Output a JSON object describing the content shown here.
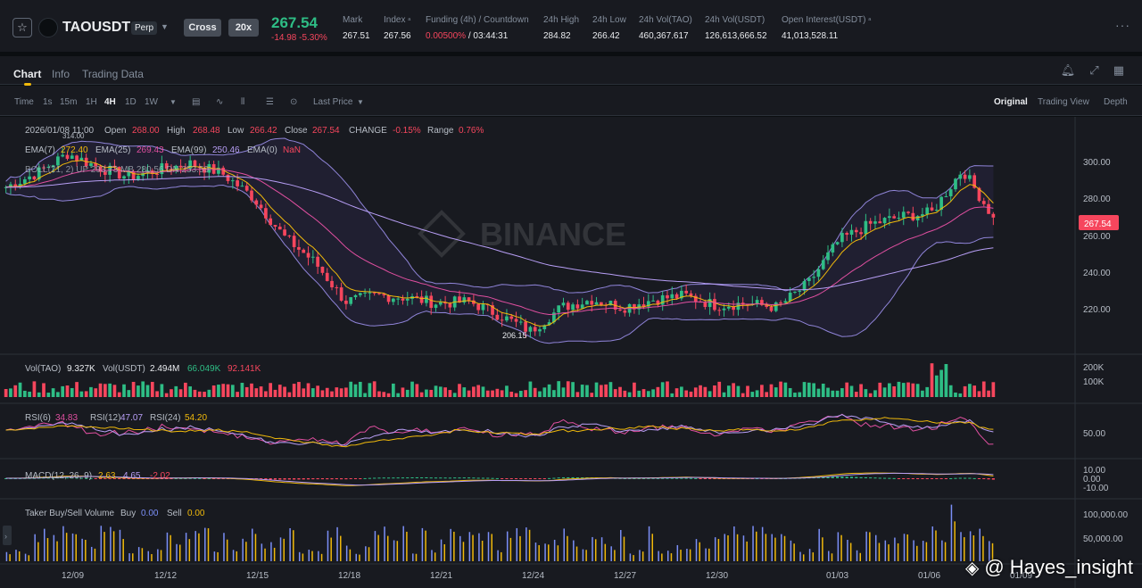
{
  "header": {
    "symbol": "TAOUSDT",
    "perp_tag": "Perp",
    "margin_mode": "Cross",
    "leverage": "20x",
    "last_price": "267.54",
    "change": "-14.98 -5.30%",
    "stats": [
      {
        "label": "Mark",
        "value": "267.51"
      },
      {
        "label": "Index",
        "value": "267.56"
      },
      {
        "label": "Funding (4h) / Countdown",
        "value_a": "0.00500%",
        "value_b": " / 03:44:31"
      },
      {
        "label": "24h High",
        "value": "284.82"
      },
      {
        "label": "24h Low",
        "value": "266.42"
      },
      {
        "label": "24h Vol(TAO)",
        "value": "460,367.617"
      },
      {
        "label": "24h Vol(USDT)",
        "value": "126,613,666.52"
      },
      {
        "label": "Open Interest(USDT)",
        "value": "41,013,528.11"
      }
    ]
  },
  "tabs": [
    "Chart",
    "Info",
    "Trading Data"
  ],
  "toolbar": {
    "intervals": [
      "Time",
      "1s",
      "15m",
      "1H",
      "4H",
      "1D",
      "1W"
    ],
    "selected_interval": "4H",
    "price_type": "Last Price",
    "views": [
      "Original",
      "Trading View",
      "Depth"
    ],
    "selected_view": "Original"
  },
  "legend": {
    "ohlc_date": "2026/01/08 11:00",
    "open_label": "Open",
    "open": "268.00",
    "high_label": "High",
    "high": "268.48",
    "low_label": "Low",
    "low": "266.42",
    "close_label": "Close",
    "close": "267.54",
    "change_label": "CHANGE",
    "change": "-0.15%",
    "range_label": "Range",
    "range": "0.76%",
    "ema": "EMA(7)  272.40  EMA(25)  269.43  EMA(99)  250.46  EMA(0)  NaN",
    "ema7_label": "EMA(7)",
    "ema7": "272.40",
    "ema25_label": "EMA(25)",
    "ema25": "269.43",
    "ema99_label": "EMA(99)",
    "ema99": "250.46",
    "ema0_label": "EMA(0)",
    "ema0": "NaN",
    "boll": "BOLL(21, 2)  UP  293.73  MB  280.56  DN  253.59",
    "vol_label": "Vol(TAO)",
    "vol_tao": "9.327K",
    "volusdt_label": "Vol(USDT)",
    "vol_usdt": "2.494M",
    "vol_ma1": "66.049K",
    "vol_ma2": "92.141K",
    "rsi6_label": "RSI(6)",
    "rsi6": "34.83",
    "rsi12_label": "RSI(12)",
    "rsi12": "47.07",
    "rsi24_label": "RSI(24)",
    "rsi24": "54.20",
    "macd_label": "MACD(12, 26, 9)",
    "macd": "2.63",
    "macd_signal": "4.65",
    "macd_hist": "-2.02",
    "taker_label": "Taker Buy/Sell Volume",
    "buy_label": "Buy",
    "buy": "0.00",
    "sell_label": "Sell",
    "sell": "0.00"
  },
  "price_axis": [
    "300.00",
    "280.00",
    "260.00",
    "240.00",
    "220.00"
  ],
  "current_price_tag": "267.54",
  "peak_label": "314.00",
  "low_marker": "206.15",
  "watermark_center": "BINANCE",
  "vol_axis": [
    "200K",
    "100K"
  ],
  "rsi_axis": [
    "50.00"
  ],
  "macd_axis": [
    "10.00",
    "0.00",
    "-10.00"
  ],
  "taker_axis": [
    "100,000.00",
    "50,000.00"
  ],
  "date_axis": [
    "12/09",
    "12/12",
    "12/15",
    "12/18",
    "12/21",
    "12/24",
    "12/27",
    "12/30",
    "01/03",
    "01/06",
    "01/09"
  ],
  "watermark_user": "@ Hayes_insight",
  "colors": {
    "up": "#2ebd85",
    "down": "#f6465d",
    "accent": "#f0b90b"
  },
  "chart_data": {
    "type": "candlestick",
    "symbol": "TAOUSDT",
    "interval": "4H",
    "price_range": [
      200,
      315
    ],
    "close_path": [
      [
        "12/07",
        283
      ],
      [
        "12/08",
        290
      ],
      [
        "12/09",
        300
      ],
      [
        "12/10",
        293
      ],
      [
        "12/11",
        288
      ],
      [
        "12/12",
        292
      ],
      [
        "12/13",
        295
      ],
      [
        "12/14",
        290
      ],
      [
        "12/15",
        278
      ],
      [
        "12/16",
        258
      ],
      [
        "12/17",
        245
      ],
      [
        "12/18",
        225
      ],
      [
        "12/19",
        228
      ],
      [
        "12/20",
        227
      ],
      [
        "12/21",
        224
      ],
      [
        "12/22",
        225
      ],
      [
        "12/23",
        218
      ],
      [
        "12/24",
        210
      ],
      [
        "12/25",
        222
      ],
      [
        "12/26",
        226
      ],
      [
        "12/27",
        222
      ],
      [
        "12/28",
        226
      ],
      [
        "12/29",
        228
      ],
      [
        "12/30",
        223
      ],
      [
        "12/31",
        224
      ],
      [
        "01/01",
        222
      ],
      [
        "01/02",
        234
      ],
      [
        "01/03",
        256
      ],
      [
        "01/04",
        264
      ],
      [
        "01/05",
        268
      ],
      [
        "01/06",
        270
      ],
      [
        "01/07",
        292
      ],
      [
        "01/08",
        267.54
      ]
    ],
    "annotated_high": 314.0,
    "annotated_low": 206.15
  }
}
